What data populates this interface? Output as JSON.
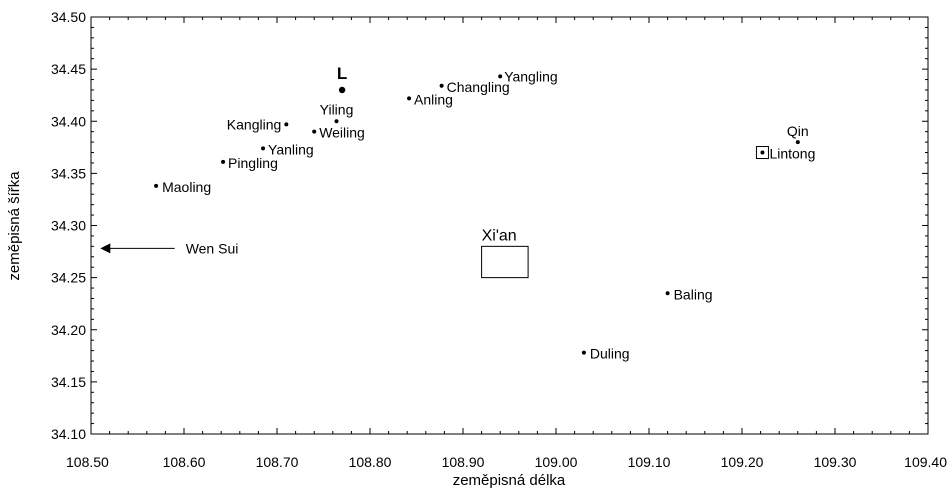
{
  "chart_data": {
    "type": "scatter",
    "xlabel": "zeměpisná délka",
    "ylabel": "zeměpisná šířka",
    "xlim": [
      108.5,
      109.4
    ],
    "ylim": [
      34.1,
      34.5
    ],
    "x_ticks": [
      "108.50",
      "108.60",
      "108.70",
      "108.80",
      "108.90",
      "109.00",
      "109.10",
      "109.20",
      "109.30",
      "109.40"
    ],
    "y_ticks": [
      "34.10",
      "34.15",
      "34.20",
      "34.25",
      "34.30",
      "34.35",
      "34.40",
      "34.45",
      "34.50"
    ],
    "grid": false,
    "points": [
      {
        "name": "L",
        "x": 108.77,
        "y": 34.43,
        "marker": "large-dot"
      },
      {
        "name": "Yangling",
        "x": 108.94,
        "y": 34.443,
        "marker": "dot"
      },
      {
        "name": "Changling",
        "x": 108.877,
        "y": 34.434,
        "marker": "dot"
      },
      {
        "name": "Anling",
        "x": 108.842,
        "y": 34.422,
        "marker": "dot"
      },
      {
        "name": "Yiling",
        "x": 108.764,
        "y": 34.4,
        "marker": "dot"
      },
      {
        "name": "Kangling",
        "x": 108.71,
        "y": 34.397,
        "marker": "dot"
      },
      {
        "name": "Weiling",
        "x": 108.74,
        "y": 34.39,
        "marker": "dot"
      },
      {
        "name": "Yanling",
        "x": 108.685,
        "y": 34.374,
        "marker": "dot"
      },
      {
        "name": "Pingling",
        "x": 108.642,
        "y": 34.361,
        "marker": "dot"
      },
      {
        "name": "Maoling",
        "x": 108.57,
        "y": 34.338,
        "marker": "dot"
      },
      {
        "name": "Qin",
        "x": 109.26,
        "y": 34.38,
        "marker": "dot"
      },
      {
        "name": "Lintong",
        "x": 109.222,
        "y": 34.37,
        "marker": "boxed-dot"
      },
      {
        "name": "Baling",
        "x": 109.12,
        "y": 34.235,
        "marker": "dot"
      },
      {
        "name": "Duling",
        "x": 109.03,
        "y": 34.178,
        "marker": "dot"
      }
    ],
    "annotations": {
      "xian": {
        "label": "Xi'an",
        "x0": 108.92,
        "x1": 108.97,
        "y0": 34.25,
        "y1": 34.28
      },
      "wen_sui": {
        "label": "Wen Sui",
        "arrow_tip_x": 108.51,
        "arrow_tail_x": 108.59,
        "y": 34.278
      }
    }
  }
}
